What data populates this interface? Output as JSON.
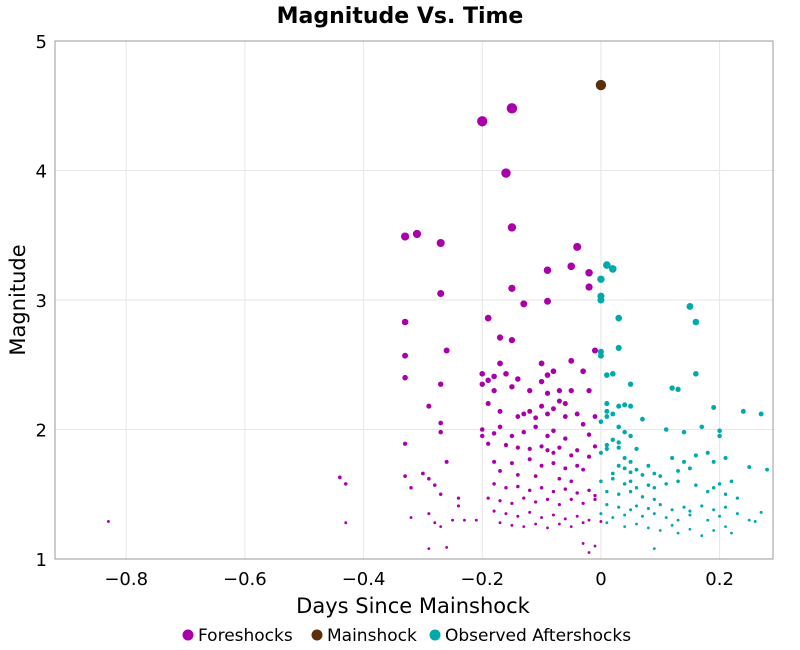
{
  "chart_data": {
    "type": "scatter",
    "title": "Magnitude Vs. Time",
    "xlabel": "Days Since Mainshock",
    "ylabel": "Magnitude",
    "xlim": [
      -0.92,
      0.29
    ],
    "ylim": [
      1,
      5
    ],
    "xticks": [
      -0.8,
      -0.6,
      -0.4,
      -0.2,
      0,
      0.2
    ],
    "xtick_labels": [
      "−0.8",
      "−0.6",
      "−0.4",
      "−0.2",
      "0",
      "0.2"
    ],
    "yticks": [
      1,
      2,
      3,
      4,
      5
    ],
    "ytick_labels": [
      "1",
      "2",
      "3",
      "4",
      "5"
    ],
    "grid": true,
    "legend_position": "bottom",
    "marker_size_scales_with_magnitude": true,
    "series": [
      {
        "name": "Foreshocks",
        "color": "#aa00aa",
        "points": [
          [
            -0.83,
            1.29
          ],
          [
            -0.44,
            1.63
          ],
          [
            -0.43,
            1.58
          ],
          [
            -0.43,
            1.28
          ],
          [
            -0.33,
            3.49
          ],
          [
            -0.31,
            3.51
          ],
          [
            -0.27,
            3.44
          ],
          [
            -0.27,
            3.05
          ],
          [
            -0.33,
            2.83
          ],
          [
            -0.33,
            2.57
          ],
          [
            -0.33,
            2.4
          ],
          [
            -0.26,
            2.61
          ],
          [
            -0.27,
            2.35
          ],
          [
            -0.29,
            2.18
          ],
          [
            -0.27,
            2.05
          ],
          [
            -0.27,
            1.98
          ],
          [
            -0.33,
            1.89
          ],
          [
            -0.26,
            1.75
          ],
          [
            -0.33,
            1.64
          ],
          [
            -0.3,
            1.66
          ],
          [
            -0.29,
            1.62
          ],
          [
            -0.28,
            1.57
          ],
          [
            -0.32,
            1.55
          ],
          [
            -0.27,
            1.5
          ],
          [
            -0.24,
            1.47
          ],
          [
            -0.24,
            1.41
          ],
          [
            -0.32,
            1.32
          ],
          [
            -0.29,
            1.35
          ],
          [
            -0.28,
            1.28
          ],
          [
            -0.27,
            1.25
          ],
          [
            -0.25,
            1.3
          ],
          [
            -0.23,
            1.3
          ],
          [
            -0.21,
            1.3
          ],
          [
            -0.29,
            1.08
          ],
          [
            -0.26,
            1.09
          ],
          [
            -0.2,
            4.38
          ],
          [
            -0.15,
            4.48
          ],
          [
            -0.16,
            3.98
          ],
          [
            -0.15,
            3.56
          ],
          [
            -0.19,
            2.86
          ],
          [
            -0.15,
            3.09
          ],
          [
            -0.13,
            2.97
          ],
          [
            -0.09,
            2.99
          ],
          [
            -0.09,
            3.23
          ],
          [
            -0.05,
            3.26
          ],
          [
            -0.04,
            3.41
          ],
          [
            -0.02,
            3.21
          ],
          [
            -0.02,
            3.1
          ],
          [
            -0.17,
            2.71
          ],
          [
            -0.15,
            2.69
          ],
          [
            -0.2,
            2.43
          ],
          [
            -0.19,
            2.38
          ],
          [
            -0.18,
            2.41
          ],
          [
            -0.2,
            2.35
          ],
          [
            -0.17,
            2.51
          ],
          [
            -0.16,
            2.43
          ],
          [
            -0.14,
            2.39
          ],
          [
            -0.1,
            2.51
          ],
          [
            -0.08,
            2.45
          ],
          [
            -0.09,
            2.42
          ],
          [
            -0.05,
            2.53
          ],
          [
            -0.03,
            2.45
          ],
          [
            -0.01,
            2.61
          ],
          [
            -0.18,
            2.3
          ],
          [
            -0.15,
            2.33
          ],
          [
            -0.12,
            2.3
          ],
          [
            -0.1,
            2.37
          ],
          [
            -0.09,
            2.28
          ],
          [
            -0.07,
            2.3
          ],
          [
            -0.05,
            2.3
          ],
          [
            -0.02,
            2.3
          ],
          [
            -0.07,
            2.22
          ],
          [
            -0.06,
            2.2
          ],
          [
            -0.19,
            2.2
          ],
          [
            -0.17,
            2.14
          ],
          [
            -0.14,
            2.1
          ],
          [
            -0.13,
            2.12
          ],
          [
            -0.12,
            2.14
          ],
          [
            -0.11,
            2.09
          ],
          [
            -0.1,
            2.18
          ],
          [
            -0.09,
            2.12
          ],
          [
            -0.08,
            2.16
          ],
          [
            -0.06,
            2.1
          ],
          [
            -0.04,
            2.12
          ],
          [
            -0.03,
            2.04
          ],
          [
            -0.01,
            2.1
          ],
          [
            -0.2,
            2.0
          ],
          [
            -0.18,
            1.97
          ],
          [
            -0.17,
            2.02
          ],
          [
            -0.15,
            1.95
          ],
          [
            -0.13,
            1.98
          ],
          [
            -0.11,
            2.02
          ],
          [
            -0.09,
            1.95
          ],
          [
            -0.08,
            1.99
          ],
          [
            -0.06,
            1.93
          ],
          [
            -0.02,
            1.96
          ],
          [
            -0.2,
            1.95
          ],
          [
            -0.19,
            1.89
          ],
          [
            -0.16,
            1.88
          ],
          [
            -0.14,
            1.86
          ],
          [
            -0.12,
            1.85
          ],
          [
            -0.1,
            1.87
          ],
          [
            -0.09,
            1.84
          ],
          [
            -0.08,
            1.82
          ],
          [
            -0.07,
            1.86
          ],
          [
            -0.05,
            1.8
          ],
          [
            -0.04,
            1.84
          ],
          [
            -0.02,
            1.79
          ],
          [
            -0.01,
            1.87
          ],
          [
            -0.18,
            1.75
          ],
          [
            -0.15,
            1.74
          ],
          [
            -0.12,
            1.77
          ],
          [
            -0.1,
            1.72
          ],
          [
            -0.08,
            1.74
          ],
          [
            -0.06,
            1.7
          ],
          [
            -0.04,
            1.72
          ],
          [
            -0.03,
            1.69
          ],
          [
            -0.17,
            1.68
          ],
          [
            -0.14,
            1.65
          ],
          [
            -0.11,
            1.64
          ],
          [
            -0.07,
            1.62
          ],
          [
            -0.05,
            1.6
          ],
          [
            -0.18,
            1.58
          ],
          [
            -0.16,
            1.55
          ],
          [
            -0.14,
            1.56
          ],
          [
            -0.12,
            1.53
          ],
          [
            -0.1,
            1.55
          ],
          [
            -0.08,
            1.52
          ],
          [
            -0.06,
            1.54
          ],
          [
            -0.04,
            1.51
          ],
          [
            -0.02,
            1.53
          ],
          [
            -0.01,
            1.49
          ],
          [
            -0.19,
            1.47
          ],
          [
            -0.17,
            1.45
          ],
          [
            -0.15,
            1.43
          ],
          [
            -0.13,
            1.47
          ],
          [
            -0.11,
            1.44
          ],
          [
            -0.09,
            1.46
          ],
          [
            -0.07,
            1.42
          ],
          [
            -0.05,
            1.46
          ],
          [
            -0.03,
            1.43
          ],
          [
            -0.01,
            1.46
          ],
          [
            -0.18,
            1.37
          ],
          [
            -0.16,
            1.35
          ],
          [
            -0.14,
            1.33
          ],
          [
            -0.12,
            1.36
          ],
          [
            -0.1,
            1.32
          ],
          [
            -0.08,
            1.34
          ],
          [
            -0.06,
            1.31
          ],
          [
            -0.04,
            1.33
          ],
          [
            -0.02,
            1.3
          ],
          [
            -0.17,
            1.28
          ],
          [
            -0.15,
            1.26
          ],
          [
            -0.13,
            1.25
          ],
          [
            -0.11,
            1.27
          ],
          [
            -0.09,
            1.24
          ],
          [
            -0.07,
            1.27
          ],
          [
            -0.05,
            1.25
          ],
          [
            -0.03,
            1.28
          ],
          [
            0.0,
            1.29
          ],
          [
            -0.03,
            1.12
          ],
          [
            -0.02,
            1.05
          ],
          [
            -0.01,
            1.1
          ]
        ]
      },
      {
        "name": "Mainshock",
        "color": "#5c2e0a",
        "points": [
          [
            0.0,
            4.66
          ]
        ]
      },
      {
        "name": "Observed Aftershocks",
        "color": "#00aaaa",
        "points": [
          [
            0.01,
            3.27
          ],
          [
            0.02,
            3.24
          ],
          [
            0.0,
            3.16
          ],
          [
            0.0,
            3.03
          ],
          [
            0.0,
            3.0
          ],
          [
            0.03,
            2.86
          ],
          [
            0.15,
            2.95
          ],
          [
            0.16,
            2.83
          ],
          [
            0.0,
            2.6
          ],
          [
            0.0,
            2.57
          ],
          [
            0.03,
            2.63
          ],
          [
            0.16,
            2.43
          ],
          [
            0.01,
            2.42
          ],
          [
            0.02,
            2.43
          ],
          [
            0.05,
            2.35
          ],
          [
            0.12,
            2.32
          ],
          [
            0.13,
            2.31
          ],
          [
            0.01,
            2.2
          ],
          [
            0.03,
            2.18
          ],
          [
            0.04,
            2.19
          ],
          [
            0.05,
            2.18
          ],
          [
            0.19,
            2.17
          ],
          [
            0.24,
            2.14
          ],
          [
            0.27,
            2.12
          ],
          [
            0.01,
            2.14
          ],
          [
            0.02,
            2.12
          ],
          [
            0.01,
            2.1
          ],
          [
            0.0,
            2.06
          ],
          [
            0.07,
            2.08
          ],
          [
            0.11,
            2.0
          ],
          [
            0.14,
            1.98
          ],
          [
            0.17,
            2.02
          ],
          [
            0.2,
            1.99
          ],
          [
            0.2,
            1.95
          ],
          [
            0.03,
            2.02
          ],
          [
            0.04,
            1.98
          ],
          [
            0.05,
            1.95
          ],
          [
            0.02,
            1.92
          ],
          [
            0.03,
            1.9
          ],
          [
            0.01,
            1.88
          ],
          [
            0.0,
            1.82
          ],
          [
            0.01,
            1.85
          ],
          [
            0.03,
            1.86
          ],
          [
            0.06,
            1.85
          ],
          [
            0.04,
            1.78
          ],
          [
            0.05,
            1.75
          ],
          [
            0.12,
            1.78
          ],
          [
            0.14,
            1.75
          ],
          [
            0.16,
            1.8
          ],
          [
            0.18,
            1.82
          ],
          [
            0.19,
            1.75
          ],
          [
            0.21,
            1.78
          ],
          [
            0.03,
            1.72
          ],
          [
            0.04,
            1.7
          ],
          [
            0.06,
            1.69
          ],
          [
            0.08,
            1.72
          ],
          [
            0.02,
            1.66
          ],
          [
            0.05,
            1.67
          ],
          [
            0.07,
            1.65
          ],
          [
            0.09,
            1.66
          ],
          [
            0.1,
            1.64
          ],
          [
            0.13,
            1.68
          ],
          [
            0.15,
            1.7
          ],
          [
            0.25,
            1.71
          ],
          [
            0.28,
            1.69
          ],
          [
            0.0,
            1.6
          ],
          [
            0.02,
            1.62
          ],
          [
            0.04,
            1.58
          ],
          [
            0.05,
            1.6
          ],
          [
            0.06,
            1.55
          ],
          [
            0.08,
            1.57
          ],
          [
            0.09,
            1.55
          ],
          [
            0.11,
            1.58
          ],
          [
            0.13,
            1.6
          ],
          [
            0.16,
            1.57
          ],
          [
            0.19,
            1.55
          ],
          [
            0.2,
            1.58
          ],
          [
            0.22,
            1.6
          ],
          [
            0.01,
            1.52
          ],
          [
            0.03,
            1.5
          ],
          [
            0.05,
            1.52
          ],
          [
            0.07,
            1.48
          ],
          [
            0.09,
            1.46
          ],
          [
            0.18,
            1.52
          ],
          [
            0.21,
            1.5
          ],
          [
            0.23,
            1.47
          ],
          [
            0.01,
            1.42
          ],
          [
            0.03,
            1.4
          ],
          [
            0.05,
            1.38
          ],
          [
            0.06,
            1.41
          ],
          [
            0.08,
            1.39
          ],
          [
            0.1,
            1.42
          ],
          [
            0.12,
            1.38
          ],
          [
            0.14,
            1.4
          ],
          [
            0.15,
            1.37
          ],
          [
            0.17,
            1.41
          ],
          [
            0.19,
            1.38
          ],
          [
            0.21,
            1.4
          ],
          [
            0.0,
            1.35
          ],
          [
            0.02,
            1.32
          ],
          [
            0.04,
            1.34
          ],
          [
            0.07,
            1.33
          ],
          [
            0.09,
            1.35
          ],
          [
            0.11,
            1.32
          ],
          [
            0.13,
            1.3
          ],
          [
            0.15,
            1.34
          ],
          [
            0.18,
            1.3
          ],
          [
            0.2,
            1.33
          ],
          [
            0.23,
            1.35
          ],
          [
            0.25,
            1.3
          ],
          [
            0.27,
            1.36
          ],
          [
            0.01,
            1.28
          ],
          [
            0.04,
            1.25
          ],
          [
            0.06,
            1.27
          ],
          [
            0.08,
            1.24
          ],
          [
            0.1,
            1.22
          ],
          [
            0.12,
            1.26
          ],
          [
            0.13,
            1.2
          ],
          [
            0.15,
            1.23
          ],
          [
            0.17,
            1.18
          ],
          [
            0.19,
            1.22
          ],
          [
            0.21,
            1.25
          ],
          [
            0.22,
            1.2
          ],
          [
            0.26,
            1.29
          ],
          [
            0.09,
            1.08
          ]
        ]
      }
    ]
  }
}
